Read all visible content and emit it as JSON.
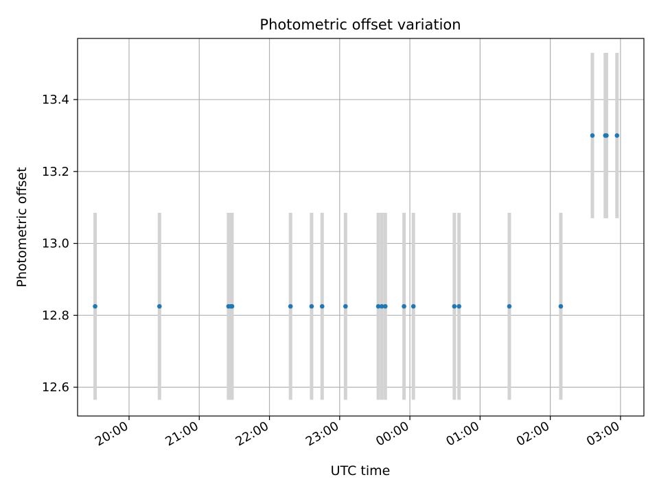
{
  "chart_data": {
    "type": "scatter",
    "title": "Photometric offset variation",
    "xlabel": "UTC time",
    "ylabel": "Photometric offset",
    "x_axis": {
      "scale": "time",
      "range": [
        "19:16",
        "03:20"
      ],
      "ticks": [
        "20:00",
        "21:00",
        "22:00",
        "23:00",
        "00:00",
        "01:00",
        "02:00",
        "03:00"
      ]
    },
    "y_axis": {
      "range": [
        12.52,
        13.57
      ],
      "ticks": [
        "12.6",
        "12.8",
        "13.0",
        "13.2",
        "13.4"
      ]
    },
    "grid": true,
    "series": [
      {
        "marker_color": "#1f77b4",
        "errorbar_color": "#d3d3d3",
        "points": [
          {
            "x": "19:31",
            "y": 12.825,
            "yerr": 0.26
          },
          {
            "x": "20:26",
            "y": 12.825,
            "yerr": 0.26
          },
          {
            "x": "21:25",
            "y": 12.825,
            "yerr": 0.26
          },
          {
            "x": "21:27",
            "y": 12.825,
            "yerr": 0.26
          },
          {
            "x": "21:28",
            "y": 12.825,
            "yerr": 0.26
          },
          {
            "x": "22:18",
            "y": 12.825,
            "yerr": 0.26
          },
          {
            "x": "22:36",
            "y": 12.825,
            "yerr": 0.26
          },
          {
            "x": "22:45",
            "y": 12.825,
            "yerr": 0.26
          },
          {
            "x": "23:05",
            "y": 12.825,
            "yerr": 0.26
          },
          {
            "x": "23:33",
            "y": 12.825,
            "yerr": 0.26
          },
          {
            "x": "23:36",
            "y": 12.825,
            "yerr": 0.26
          },
          {
            "x": "23:39",
            "y": 12.825,
            "yerr": 0.26
          },
          {
            "x": "23:55",
            "y": 12.825,
            "yerr": 0.26
          },
          {
            "x": "00:03",
            "y": 12.825,
            "yerr": 0.26
          },
          {
            "x": "00:38",
            "y": 12.825,
            "yerr": 0.26
          },
          {
            "x": "00:42",
            "y": 12.825,
            "yerr": 0.26
          },
          {
            "x": "01:25",
            "y": 12.825,
            "yerr": 0.26
          },
          {
            "x": "02:09",
            "y": 12.825,
            "yerr": 0.26
          },
          {
            "x": "02:36",
            "y": 13.3,
            "yerr": 0.23
          },
          {
            "x": "02:47",
            "y": 13.3,
            "yerr": 0.23
          },
          {
            "x": "02:48",
            "y": 13.3,
            "yerr": 0.23
          },
          {
            "x": "02:57",
            "y": 13.3,
            "yerr": 0.23
          }
        ]
      }
    ]
  }
}
